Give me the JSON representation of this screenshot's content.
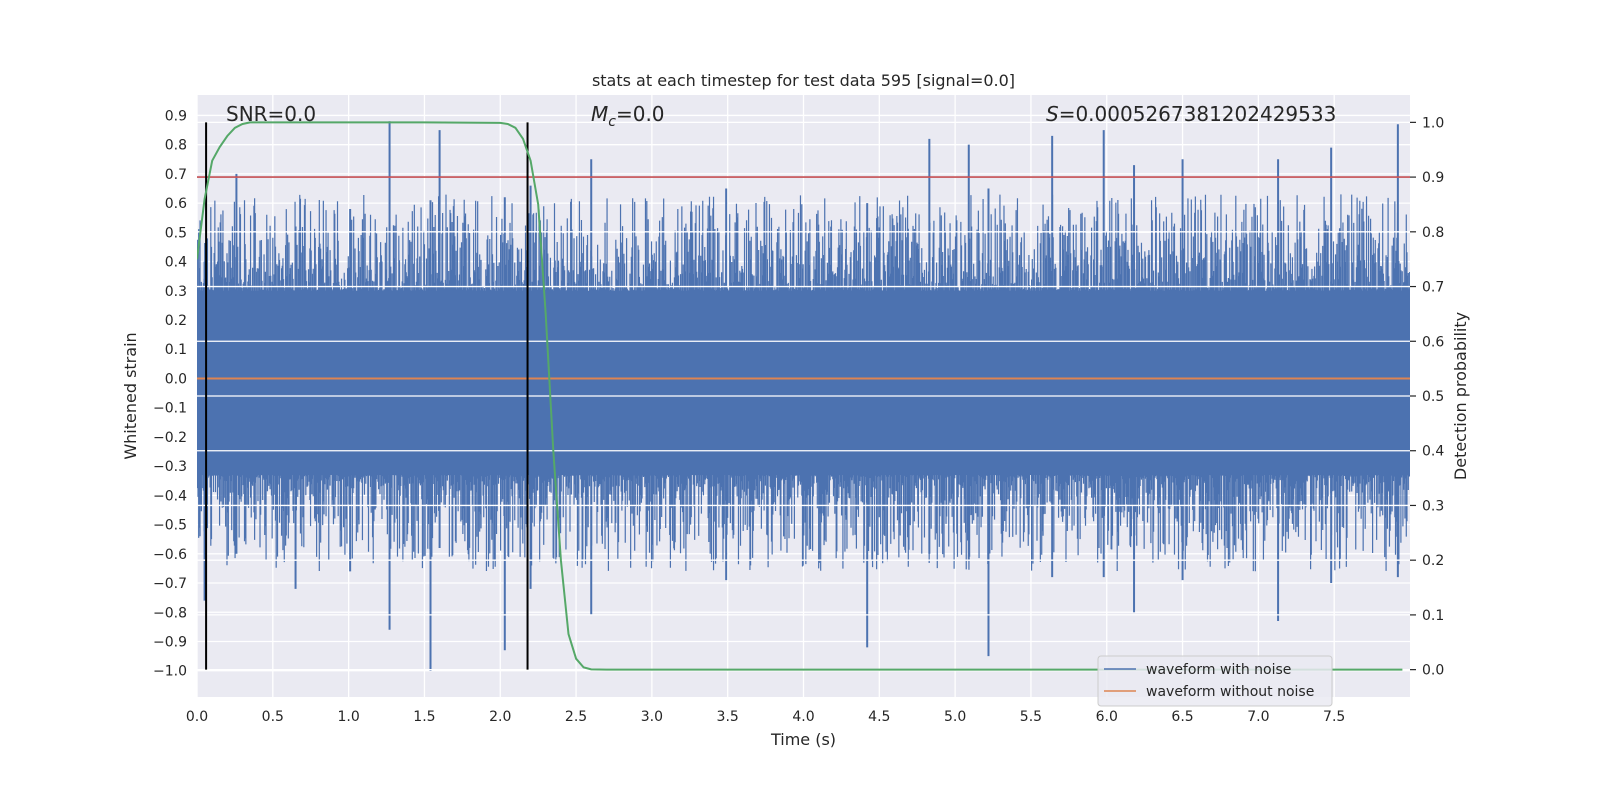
{
  "chart_data": {
    "type": "line",
    "title": "stats at each timestep for test data 595 [signal=0.0]",
    "xlabel": "Time (s)",
    "ylabel": "Whitened strain",
    "y2label": "Detection probability",
    "xlim": [
      0,
      8
    ],
    "ylim": [
      -1.09,
      0.97
    ],
    "y2lim": [
      -0.05,
      1.05
    ],
    "xticks": [
      "0.0",
      "0.5",
      "1.0",
      "1.5",
      "2.0",
      "2.5",
      "3.0",
      "3.5",
      "4.0",
      "4.5",
      "5.0",
      "5.5",
      "6.0",
      "6.5",
      "7.0",
      "7.5"
    ],
    "yticks": [
      "0.9",
      "0.8",
      "0.7",
      "0.6",
      "0.5",
      "0.4",
      "0.3",
      "0.2",
      "0.1",
      "0.0",
      "−0.1",
      "−0.2",
      "−0.3",
      "−0.4",
      "−0.5",
      "−0.6",
      "−0.7",
      "−0.8",
      "−0.9",
      "−1.0"
    ],
    "y2ticks": [
      "1.0",
      "0.9",
      "0.8",
      "0.7",
      "0.6",
      "0.5",
      "0.4",
      "0.3",
      "0.2",
      "0.1",
      "0.0"
    ],
    "grid": true,
    "legend_loc": "lower right",
    "annotations": {
      "snr_label": "SNR=0.0",
      "mc_symbol": "M",
      "mc_sub": "c",
      "mc_value": "=0.0",
      "s_symbol": "S",
      "s_value": "=0.0005267381202429533"
    },
    "series": [
      {
        "name": "waveform with noise",
        "color": "#4c72b0",
        "description_range": [
          -1.0,
          0.87
        ],
        "peaks": [
          {
            "x": 0.05,
            "ymin": -0.76,
            "ymax": 0.4
          },
          {
            "x": 0.26,
            "ymin": -0.6,
            "ymax": 0.7
          },
          {
            "x": 0.65,
            "ymin": -0.72,
            "ymax": 0.52
          },
          {
            "x": 1.01,
            "ymin": -0.66,
            "ymax": 0.58
          },
          {
            "x": 1.27,
            "ymin": -0.86,
            "ymax": 0.88
          },
          {
            "x": 1.54,
            "ymin": -1.0,
            "ymax": 0.61
          },
          {
            "x": 1.6,
            "ymin": -0.58,
            "ymax": 0.85
          },
          {
            "x": 2.03,
            "ymin": -0.93,
            "ymax": 0.62
          },
          {
            "x": 2.2,
            "ymin": -0.72,
            "ymax": 0.66
          },
          {
            "x": 2.6,
            "ymin": -0.81,
            "ymax": 0.75
          },
          {
            "x": 3.49,
            "ymin": -0.69,
            "ymax": 0.65
          },
          {
            "x": 4.42,
            "ymin": -0.92,
            "ymax": 0.6
          },
          {
            "x": 4.83,
            "ymin": -0.6,
            "ymax": 0.82
          },
          {
            "x": 5.09,
            "ymin": -0.62,
            "ymax": 0.8
          },
          {
            "x": 5.22,
            "ymin": -0.95,
            "ymax": 0.65
          },
          {
            "x": 5.64,
            "ymin": -0.68,
            "ymax": 0.83
          },
          {
            "x": 5.98,
            "ymin": -0.68,
            "ymax": 0.85
          },
          {
            "x": 6.18,
            "ymin": -0.8,
            "ymax": 0.73
          },
          {
            "x": 6.5,
            "ymin": -0.69,
            "ymax": 0.75
          },
          {
            "x": 7.13,
            "ymin": -0.83,
            "ymax": 0.75
          },
          {
            "x": 7.48,
            "ymin": -0.7,
            "ymax": 0.79
          },
          {
            "x": 7.92,
            "ymin": -0.68,
            "ymax": 0.87
          }
        ]
      },
      {
        "name": "waveform without noise",
        "color": "#dd8452",
        "x": [
          0,
          8
        ],
        "y": [
          0,
          0
        ]
      },
      {
        "name": "",
        "axis": "right",
        "color": "#55a868",
        "x": [
          0.0,
          0.05,
          0.1,
          0.15,
          0.2,
          0.25,
          0.3,
          0.35,
          0.4,
          0.5,
          1.0,
          1.5,
          2.0,
          2.05,
          2.1,
          2.15,
          2.2,
          2.25,
          2.3,
          2.35,
          2.4,
          2.45,
          2.5,
          2.55,
          2.6,
          2.7,
          3.0,
          5.0,
          7.95
        ],
        "y": [
          0.75,
          0.86,
          0.93,
          0.955,
          0.975,
          0.99,
          0.997,
          1.0,
          1.0,
          1.0,
          1.0,
          1.0,
          0.999,
          0.997,
          0.99,
          0.97,
          0.93,
          0.85,
          0.65,
          0.4,
          0.2,
          0.065,
          0.02,
          0.004,
          0.0005,
          0.0,
          0.0,
          0.0,
          0.0
        ]
      }
    ],
    "threshold": {
      "axis": "right",
      "y": 0.9,
      "color": "#c44e52"
    },
    "vlines": {
      "x": [
        0.06,
        2.18
      ],
      "y2range": [
        0.0,
        1.0
      ],
      "color": "#000000"
    }
  }
}
